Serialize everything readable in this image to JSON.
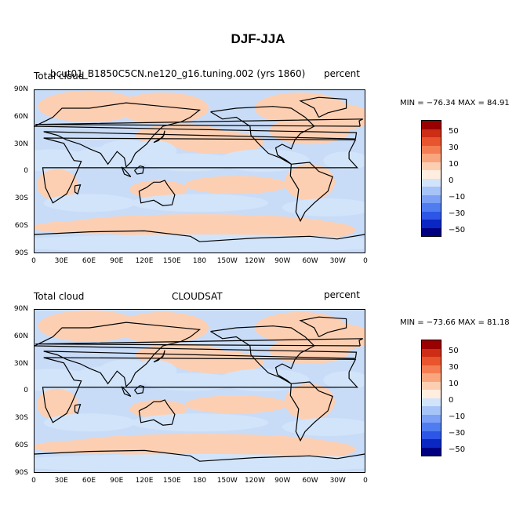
{
  "page_title": "DJF-JJA",
  "colorbar": {
    "colors": [
      "#000080",
      "#0a27c4",
      "#2d56e6",
      "#4f7df0",
      "#7ba0f5",
      "#a6c4f7",
      "#d2e4fa",
      "#ffeedf",
      "#fdcfb2",
      "#f9a67e",
      "#f47d53",
      "#e8542d",
      "#cc2d14",
      "#990000"
    ],
    "labels": [
      "50",
      "30",
      "10",
      "0",
      "−10",
      "−30",
      "−50"
    ]
  },
  "axes": {
    "y_ticks": [
      "90N",
      "60N",
      "30N",
      "0",
      "30S",
      "60S",
      "90S"
    ],
    "x_ticks": [
      "0",
      "30E",
      "60E",
      "90E",
      "120E",
      "150E",
      "180",
      "150W",
      "120W",
      "90W",
      "60W",
      "30W",
      "0"
    ]
  },
  "panels": [
    {
      "left_label": "Total cloud",
      "center_label": "bcut01_B1850C5CN.ne120_g16.tuning.002 (yrs 1860)",
      "right_label": "percent",
      "min_max": "MIN = −76.34  MAX =  84.91"
    },
    {
      "left_label": "Total cloud",
      "center_label": "CLOUDSAT",
      "right_label": "percent",
      "min_max": "MIN = −73.66  MAX =  81.18"
    }
  ]
}
